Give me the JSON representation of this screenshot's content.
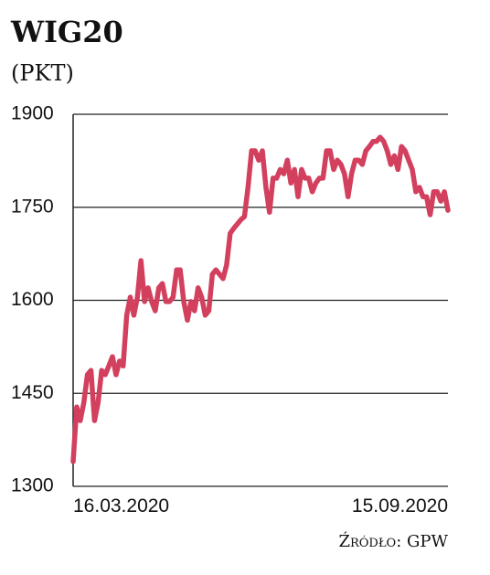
{
  "chart_data": {
    "type": "line",
    "title": "WIG20",
    "subtitle": "(PKT)",
    "source": "Źródło: GPW",
    "categories": [
      "16.03.2020",
      null,
      null,
      null,
      null,
      null,
      null,
      null,
      null,
      null,
      null,
      null,
      null,
      null,
      null,
      null,
      null,
      null,
      null,
      null,
      null,
      null,
      null,
      null,
      null,
      null,
      null,
      null,
      null,
      null,
      null,
      null,
      null,
      null,
      null,
      null,
      null,
      null,
      null,
      null,
      null,
      null,
      null,
      null,
      null,
      null,
      null,
      null,
      null,
      null,
      null,
      null,
      null,
      null,
      null,
      null,
      null,
      null,
      null,
      null,
      null,
      null,
      null,
      null,
      null,
      null,
      null,
      null,
      null,
      null,
      null,
      null,
      null,
      null,
      null,
      null,
      null,
      null,
      null,
      null,
      null,
      null,
      null,
      null,
      null,
      null,
      null,
      null,
      null,
      null,
      null,
      null,
      null,
      null,
      null,
      null,
      null,
      null,
      null,
      null,
      null,
      null,
      null,
      null,
      null,
      "15.09.2020"
    ],
    "values": [
      1340,
      1428,
      1406,
      1435,
      1480,
      1487,
      1406,
      1435,
      1487,
      1480,
      1494,
      1509,
      1480,
      1502,
      1494,
      1576,
      1605,
      1576,
      1605,
      1664,
      1598,
      1620,
      1598,
      1583,
      1620,
      1627,
      1598,
      1598,
      1605,
      1649,
      1649,
      1598,
      1568,
      1598,
      1583,
      1620,
      1605,
      1576,
      1583,
      1642,
      1649,
      1642,
      1635,
      1657,
      1708,
      1716,
      1723,
      1730,
      1735,
      1782,
      1841,
      1841,
      1826,
      1841,
      1782,
      1742,
      1797,
      1797,
      1811,
      1804,
      1826,
      1789,
      1811,
      1767,
      1811,
      1797,
      1797,
      1775,
      1789,
      1797,
      1797,
      1841,
      1841,
      1811,
      1826,
      1819,
      1804,
      1767,
      1804,
      1826,
      1826,
      1819,
      1841,
      1848,
      1856,
      1856,
      1863,
      1856,
      1841,
      1819,
      1833,
      1811,
      1848,
      1841,
      1826,
      1811,
      1775,
      1782,
      1767,
      1767,
      1738,
      1775,
      1775,
      1760,
      1775,
      1745
    ],
    "color": "#d2405e",
    "ylim": [
      1300,
      1900
    ],
    "yticks": [
      1300,
      1450,
      1600,
      1750,
      1900
    ],
    "grid": true
  }
}
